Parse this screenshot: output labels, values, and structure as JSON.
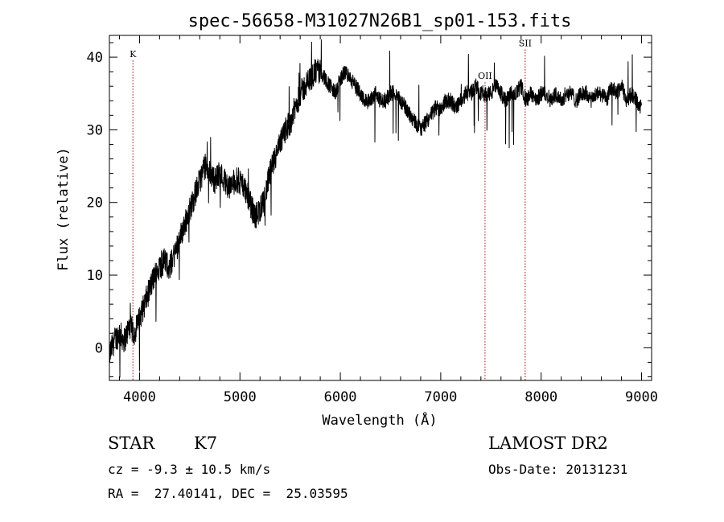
{
  "chart_data": {
    "type": "line",
    "title": "spec-56658-M31027N26B1_sp01-153.fits",
    "xlabel": "Wavelength (Å)",
    "ylabel": "Flux (relative)",
    "xlim": [
      3700,
      9100
    ],
    "ylim": [
      -4.5,
      43
    ],
    "xticks": [
      4000,
      5000,
      6000,
      7000,
      8000,
      9000
    ],
    "yticks": [
      0,
      10,
      20,
      30,
      40
    ],
    "grid": false,
    "series": [
      {
        "x": [
          3700,
          3750,
          3800,
          3850,
          3900,
          3950,
          4000,
          4050,
          4100,
          4150,
          4200,
          4250,
          4300,
          4350,
          4400,
          4450,
          4500,
          4550,
          4600,
          4650,
          4700,
          4750,
          4800,
          4850,
          4900,
          4950,
          5000,
          5050,
          5100,
          5150,
          5200,
          5250,
          5300,
          5350,
          5400,
          5450,
          5500,
          5550,
          5600,
          5650,
          5700,
          5750,
          5800,
          5850,
          5900,
          5950,
          6000,
          6050,
          6100,
          6150,
          6200,
          6250,
          6300,
          6350,
          6400,
          6450,
          6500,
          6550,
          6600,
          6650,
          6700,
          6750,
          6800,
          6850,
          6900,
          6950,
          7000,
          7050,
          7100,
          7150,
          7200,
          7250,
          7300,
          7350,
          7400,
          7450,
          7500,
          7550,
          7600,
          7650,
          7700,
          7750,
          7800,
          7850,
          7900,
          7950,
          8000,
          8050,
          8100,
          8150,
          8200,
          8250,
          8300,
          8350,
          8400,
          8450,
          8500,
          8550,
          8600,
          8650,
          8700,
          8750,
          8800,
          8850,
          8900,
          8950,
          9000
        ],
        "values": [
          -1,
          1,
          2,
          1,
          3,
          2,
          4,
          6,
          8,
          10,
          11,
          12,
          11,
          13,
          15,
          17,
          19,
          21,
          23,
          25,
          24,
          23,
          24,
          23,
          22,
          23,
          23,
          22,
          20,
          18,
          19,
          21,
          24,
          26,
          28,
          30,
          31,
          33,
          35,
          36,
          37,
          38,
          38,
          37,
          36,
          35,
          37,
          38,
          37,
          36,
          35,
          34,
          34,
          35,
          34,
          34,
          35,
          35,
          34,
          33,
          32,
          31,
          30,
          31,
          32,
          33,
          33,
          34,
          34,
          33,
          34,
          35,
          35,
          36,
          35,
          35,
          35,
          36,
          35,
          34,
          35,
          35,
          36,
          34,
          35,
          34,
          35,
          35,
          34,
          35,
          34,
          35,
          35,
          34,
          35,
          35,
          34,
          35,
          35,
          34,
          36,
          35,
          36,
          34,
          35,
          34,
          33
        ]
      }
    ],
    "annotations": [
      {
        "label": "K",
        "x": 3934,
        "label_y": 40.0
      },
      {
        "label": "OII",
        "x": 7441,
        "label_y": 37.0
      },
      {
        "label": "SII",
        "x": 7841,
        "label_y": 41.5
      }
    ]
  },
  "info": {
    "class": "STAR",
    "subclass": "K7",
    "cz": "cz = -9.3 ± 10.5 km/s",
    "radec": "RA =  27.40141, DEC =  25.03595",
    "survey": "LAMOST DR2",
    "obs_date": "Obs-Date: 20131231"
  },
  "colors": {
    "line": "#000000",
    "marker_line": "#aa0000",
    "background": "#ffffff"
  }
}
